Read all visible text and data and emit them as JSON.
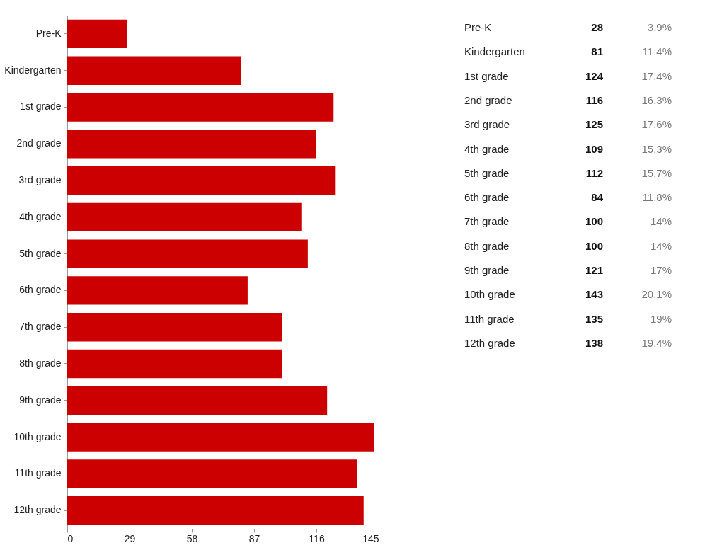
{
  "chart_data": {
    "type": "bar",
    "orientation": "horizontal",
    "categories": [
      "Pre-K",
      "Kindergarten",
      "1st grade",
      "2nd grade",
      "3rd grade",
      "4th grade",
      "5th grade",
      "6th grade",
      "7th grade",
      "8th grade",
      "9th grade",
      "10th grade",
      "11th grade",
      "12th grade"
    ],
    "values": [
      28,
      81,
      124,
      116,
      125,
      109,
      112,
      84,
      100,
      100,
      121,
      143,
      135,
      138
    ],
    "color": "#cc0000",
    "xlim": [
      0,
      145
    ],
    "xticks": [
      0,
      29,
      58,
      87,
      116,
      145
    ],
    "grid": false,
    "annotations": [
      "28",
      "3.9%",
      "81",
      "11.4%",
      "124",
      "17.4%",
      "116",
      "16.3%",
      "125",
      "17.6%",
      "109",
      "15.3%",
      "112",
      "15.7%",
      "84",
      "11.8%",
      "100",
      "14%",
      "100",
      "14%",
      "121",
      "17%",
      "143",
      "20.1%",
      "135",
      "19%",
      "138",
      "19.4%"
    ]
  }
}
